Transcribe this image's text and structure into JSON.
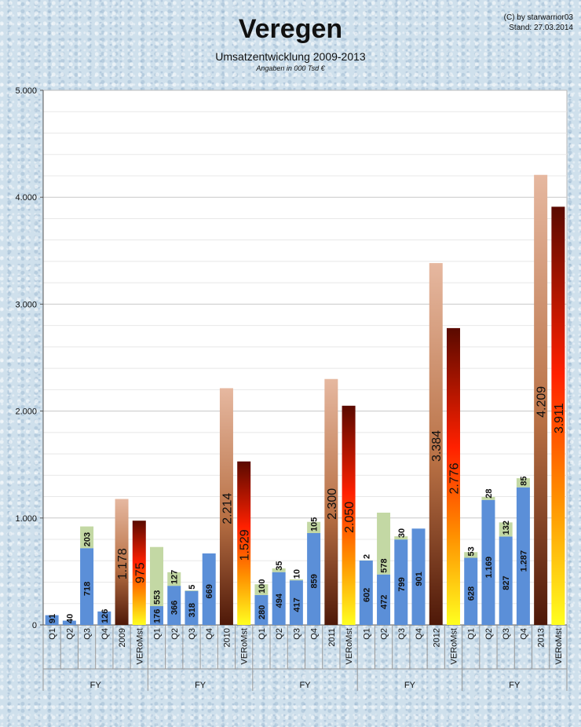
{
  "header": {
    "title": "Veregen",
    "subtitle": "Umsatzentwicklung 2009-2013",
    "note": "Angaben in 000 Tsd €",
    "credit_line1": "(C) by starwarrior03",
    "credit_line2": "Stand: 27.03.2014"
  },
  "chart_data": {
    "type": "bar",
    "stacked": true,
    "ylim": [
      0,
      5000
    ],
    "y_ticks": [
      {
        "value": 0,
        "label": "0"
      },
      {
        "value": 1000,
        "label": "1.000"
      },
      {
        "value": 2000,
        "label": "2.000"
      },
      {
        "value": 3000,
        "label": "3.000"
      },
      {
        "value": 4000,
        "label": "4.000"
      },
      {
        "value": 5000,
        "label": "5.000"
      }
    ],
    "grid": true,
    "group_label": "FY",
    "categories": [
      {
        "label": "Q1",
        "kind": "q",
        "base": 91,
        "base_label": "91",
        "extra": 0,
        "extra_label": ""
      },
      {
        "label": "Q2",
        "kind": "q",
        "base": 40,
        "base_label": "40",
        "extra": 0,
        "extra_label": ""
      },
      {
        "label": "Q3",
        "kind": "q",
        "base": 718,
        "base_label": "718",
        "extra": 203,
        "extra_label": "203"
      },
      {
        "label": "Q4",
        "kind": "q",
        "base": 126,
        "base_label": "126",
        "extra": 0,
        "extra_label": ""
      },
      {
        "label": "2009",
        "kind": "fy",
        "value": 1178,
        "value_label": "1.178"
      },
      {
        "label": "VERoMst",
        "kind": "ms",
        "value": 975,
        "value_label": "975"
      },
      {
        "label": "Q1",
        "kind": "q",
        "base": 176,
        "base_label": "176",
        "extra": 553,
        "extra_label": "553"
      },
      {
        "label": "Q2",
        "kind": "q",
        "base": 366,
        "base_label": "366",
        "extra": 127,
        "extra_label": "127"
      },
      {
        "label": "Q3",
        "kind": "q",
        "base": 318,
        "base_label": "318",
        "extra": 5,
        "extra_label": "5"
      },
      {
        "label": "Q4",
        "kind": "q",
        "base": 669,
        "base_label": "669",
        "extra": 0,
        "extra_label": ""
      },
      {
        "label": "2010",
        "kind": "fy",
        "value": 2214,
        "value_label": "2.214"
      },
      {
        "label": "VERoMst",
        "kind": "ms",
        "value": 1529,
        "value_label": "1.529"
      },
      {
        "label": "Q1",
        "kind": "q",
        "base": 280,
        "base_label": "280",
        "extra": 100,
        "extra_label": "100"
      },
      {
        "label": "Q2",
        "kind": "q",
        "base": 494,
        "base_label": "494",
        "extra": 35,
        "extra_label": "35"
      },
      {
        "label": "Q3",
        "kind": "q",
        "base": 417,
        "base_label": "417",
        "extra": 10,
        "extra_label": "10"
      },
      {
        "label": "Q4",
        "kind": "q",
        "base": 859,
        "base_label": "859",
        "extra": 105,
        "extra_label": "105"
      },
      {
        "label": "2011",
        "kind": "fy",
        "value": 2300,
        "value_label": "2.300"
      },
      {
        "label": "VERoMst",
        "kind": "ms",
        "value": 2050,
        "value_label": "2.050"
      },
      {
        "label": "Q1",
        "kind": "q",
        "base": 602,
        "base_label": "602",
        "extra": 2,
        "extra_label": "2"
      },
      {
        "label": "Q2",
        "kind": "q",
        "base": 472,
        "base_label": "472",
        "extra": 578,
        "extra_label": "578"
      },
      {
        "label": "Q3",
        "kind": "q",
        "base": 799,
        "base_label": "799",
        "extra": 30,
        "extra_label": "30"
      },
      {
        "label": "Q4",
        "kind": "q",
        "base": 901,
        "base_label": "901",
        "extra": 0,
        "extra_label": ""
      },
      {
        "label": "2012",
        "kind": "fy",
        "value": 3384,
        "value_label": "3.384"
      },
      {
        "label": "VERoMst",
        "kind": "ms",
        "value": 2776,
        "value_label": "2.776"
      },
      {
        "label": "Q1",
        "kind": "q",
        "base": 628,
        "base_label": "628",
        "extra": 53,
        "extra_label": "53"
      },
      {
        "label": "Q2",
        "kind": "q",
        "base": 1169,
        "base_label": "1.169",
        "extra": 28,
        "extra_label": "28"
      },
      {
        "label": "Q3",
        "kind": "q",
        "base": 827,
        "base_label": "827",
        "extra": 132,
        "extra_label": "132"
      },
      {
        "label": "Q4",
        "kind": "q",
        "base": 1287,
        "base_label": "1.287",
        "extra": 85,
        "extra_label": "85"
      },
      {
        "label": "2013",
        "kind": "fy",
        "value": 4209,
        "value_label": "4.209"
      },
      {
        "label": "VERoMst",
        "kind": "ms",
        "value": 3911,
        "value_label": "3.911"
      }
    ],
    "colors": {
      "quarter": "#5b8fd8",
      "extra": "#c3d8a4",
      "fy_top": "#e6b8a0",
      "fy_mid": "#b87044",
      "fy_bottom": "#4e1808",
      "ms_top": "#5a0a00",
      "ms_mid": "#ff2000",
      "ms_low": "#ff9000",
      "ms_bottom": "#ffff20"
    }
  }
}
